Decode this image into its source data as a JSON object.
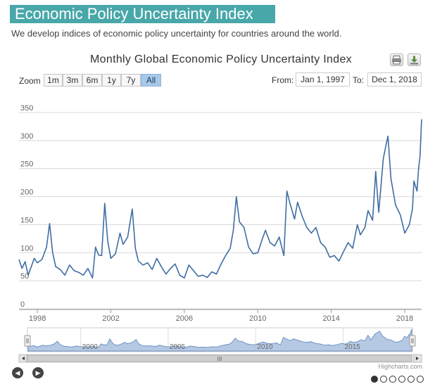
{
  "header": {
    "title": "Economic Policy Uncertainty Index",
    "subtitle": "We develop indices of economic policy uncertainty for countries around the world."
  },
  "colors": {
    "accent": "#48a7a9",
    "series": "#3f6da3",
    "navigator_fill": "#a9c0de",
    "active_zoom": "#a8c8ea"
  },
  "toolbar": {
    "print_icon": "print-icon",
    "download_icon": "download-icon",
    "zoom_label": "Zoom",
    "zoom_buttons": [
      "1m",
      "3m",
      "6m",
      "1y",
      "7y",
      "All"
    ],
    "active_zoom": "All",
    "from_label": "From:",
    "from_value": "Jan 1, 1997",
    "to_label": "To:",
    "to_value": "Dec 1, 2018"
  },
  "navigator": {
    "tick_labels": [
      "2000",
      "2005",
      "2010",
      "2015"
    ],
    "scroll_grip": "III",
    "range": [
      "Jan 1997",
      "Dec 2018"
    ]
  },
  "footer": {
    "credits": "Highcharts.com",
    "page_count": 6,
    "active_page": 1
  },
  "chart_data": {
    "type": "line",
    "title": "Monthly Global Economic Policy Uncertainty Index",
    "xlabel": "",
    "ylabel": "",
    "x_ticks": [
      "1998",
      "2002",
      "2006",
      "2010",
      "2014",
      "2018"
    ],
    "y_ticks": [
      0,
      50,
      100,
      150,
      200,
      250,
      300,
      350
    ],
    "ylim": [
      0,
      350
    ],
    "xlim": [
      "1997-01",
      "2018-12"
    ],
    "grid": true,
    "series": [
      {
        "name": "",
        "points": [
          [
            "1997-01",
            88
          ],
          [
            "1997-03",
            72
          ],
          [
            "1997-05",
            84
          ],
          [
            "1997-07",
            60
          ],
          [
            "1997-09",
            75
          ],
          [
            "1997-11",
            90
          ],
          [
            "1998-01",
            82
          ],
          [
            "1998-04",
            88
          ],
          [
            "1998-07",
            110
          ],
          [
            "1998-09",
            152
          ],
          [
            "1998-11",
            100
          ],
          [
            "1999-01",
            75
          ],
          [
            "1999-04",
            70
          ],
          [
            "1999-07",
            60
          ],
          [
            "1999-10",
            78
          ],
          [
            "2000-01",
            68
          ],
          [
            "2000-04",
            65
          ],
          [
            "2000-07",
            60
          ],
          [
            "2000-10",
            72
          ],
          [
            "2001-01",
            55
          ],
          [
            "2001-03",
            110
          ],
          [
            "2001-05",
            96
          ],
          [
            "2001-07",
            95
          ],
          [
            "2001-09",
            188
          ],
          [
            "2001-11",
            120
          ],
          [
            "2002-01",
            90
          ],
          [
            "2002-04",
            98
          ],
          [
            "2002-07",
            135
          ],
          [
            "2002-09",
            115
          ],
          [
            "2002-12",
            128
          ],
          [
            "2003-03",
            178
          ],
          [
            "2003-05",
            108
          ],
          [
            "2003-07",
            85
          ],
          [
            "2003-10",
            78
          ],
          [
            "2004-01",
            82
          ],
          [
            "2004-04",
            70
          ],
          [
            "2004-07",
            90
          ],
          [
            "2004-10",
            75
          ],
          [
            "2005-01",
            62
          ],
          [
            "2005-04",
            72
          ],
          [
            "2005-07",
            80
          ],
          [
            "2005-10",
            60
          ],
          [
            "2006-01",
            55
          ],
          [
            "2006-04",
            78
          ],
          [
            "2006-07",
            68
          ],
          [
            "2006-10",
            58
          ],
          [
            "2007-01",
            60
          ],
          [
            "2007-04",
            56
          ],
          [
            "2007-07",
            66
          ],
          [
            "2007-10",
            62
          ],
          [
            "2008-01",
            80
          ],
          [
            "2008-04",
            95
          ],
          [
            "2008-07",
            108
          ],
          [
            "2008-09",
            140
          ],
          [
            "2008-11",
            200
          ],
          [
            "2009-01",
            155
          ],
          [
            "2009-04",
            145
          ],
          [
            "2009-07",
            110
          ],
          [
            "2009-10",
            98
          ],
          [
            "2010-01",
            100
          ],
          [
            "2010-04",
            125
          ],
          [
            "2010-06",
            140
          ],
          [
            "2010-09",
            118
          ],
          [
            "2010-12",
            112
          ],
          [
            "2011-03",
            128
          ],
          [
            "2011-06",
            95
          ],
          [
            "2011-08",
            210
          ],
          [
            "2011-10",
            188
          ],
          [
            "2012-01",
            160
          ],
          [
            "2012-03",
            190
          ],
          [
            "2012-06",
            165
          ],
          [
            "2012-09",
            145
          ],
          [
            "2012-12",
            135
          ],
          [
            "2013-03",
            145
          ],
          [
            "2013-06",
            118
          ],
          [
            "2013-09",
            110
          ],
          [
            "2013-12",
            92
          ],
          [
            "2014-03",
            95
          ],
          [
            "2014-06",
            85
          ],
          [
            "2014-09",
            102
          ],
          [
            "2014-12",
            118
          ],
          [
            "2015-03",
            108
          ],
          [
            "2015-06",
            150
          ],
          [
            "2015-08",
            132
          ],
          [
            "2015-11",
            145
          ],
          [
            "2016-01",
            175
          ],
          [
            "2016-04",
            158
          ],
          [
            "2016-06",
            245
          ],
          [
            "2016-08",
            172
          ],
          [
            "2016-11",
            268
          ],
          [
            "2017-01",
            295
          ],
          [
            "2017-02",
            308
          ],
          [
            "2017-04",
            232
          ],
          [
            "2017-07",
            185
          ],
          [
            "2017-10",
            168
          ],
          [
            "2018-01",
            135
          ],
          [
            "2018-04",
            150
          ],
          [
            "2018-06",
            178
          ],
          [
            "2018-07",
            228
          ],
          [
            "2018-09",
            210
          ],
          [
            "2018-10",
            250
          ],
          [
            "2018-11",
            272
          ],
          [
            "2018-12",
            338
          ]
        ]
      }
    ]
  }
}
